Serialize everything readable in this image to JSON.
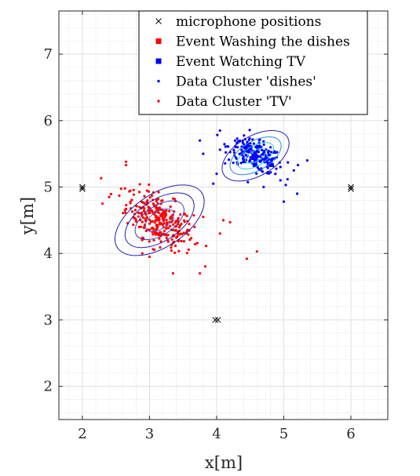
{
  "chart_data": {
    "type": "scatter",
    "xlabel": "x[m]",
    "ylabel": "y[m]",
    "xlim": [
      1.65,
      6.55
    ],
    "ylim": [
      1.5,
      7.65
    ],
    "xticks": [
      "2",
      "3",
      "4",
      "5",
      "6"
    ],
    "yticks": [
      "2",
      "3",
      "4",
      "5",
      "6",
      "7"
    ],
    "grid": true,
    "minor_grid": true,
    "legend_position": "top-right",
    "legend": [
      {
        "label": "microphone positions",
        "marker": "x",
        "color": "#000000"
      },
      {
        "label": "Event Washing the dishes",
        "marker": "square",
        "color": "#ff0000"
      },
      {
        "label": "Event Watching TV",
        "marker": "square",
        "color": "#0000ff"
      },
      {
        "label": "Data Cluster 'dishes'",
        "marker": "dot",
        "color": "#0000ff"
      },
      {
        "label": "Data Cluster 'TV'",
        "marker": "dot",
        "color": "#ff0000"
      }
    ],
    "microphones": [
      {
        "x": 2.0,
        "y": 5.0
      },
      {
        "x": 2.0,
        "y": 4.97
      },
      {
        "x": 6.0,
        "y": 5.0
      },
      {
        "x": 6.0,
        "y": 4.97
      },
      {
        "x": 3.98,
        "y": 3.0
      },
      {
        "x": 4.02,
        "y": 3.0
      }
    ],
    "clusters": [
      {
        "name": "red",
        "color": "#ff0000",
        "center": [
          3.15,
          4.5
        ],
        "spread": [
          0.25,
          0.22
        ],
        "corr": -0.55,
        "count": 300,
        "outliers": [
          [
            2.65,
            5.38
          ],
          [
            2.65,
            5.33
          ],
          [
            2.3,
            4.75
          ],
          [
            2.4,
            4.85
          ],
          [
            3.35,
            3.7
          ],
          [
            3.75,
            3.7
          ],
          [
            4.45,
            3.92
          ],
          [
            4.6,
            4.03
          ],
          [
            4.1,
            4.5
          ],
          [
            4.2,
            4.47
          ],
          [
            4.05,
            4.3
          ],
          [
            3.8,
            4.55
          ],
          [
            3.0,
            3.95
          ],
          [
            2.55,
            4.87
          ]
        ],
        "ellipses": [
          {
            "cx": 3.15,
            "cy": 4.5,
            "rx": 0.75,
            "ry": 0.4,
            "angle": -33,
            "color": "#1f1fb4"
          },
          {
            "cx": 3.15,
            "cy": 4.5,
            "rx": 0.58,
            "ry": 0.31,
            "angle": -33,
            "color": "#1f1fb4"
          },
          {
            "cx": 3.15,
            "cy": 4.5,
            "rx": 0.41,
            "ry": 0.22,
            "angle": -33,
            "color": "#3c3cc8"
          },
          {
            "cx": 3.15,
            "cy": 4.5,
            "rx": 0.24,
            "ry": 0.13,
            "angle": -33,
            "color": "#5a5ae0"
          }
        ]
      },
      {
        "name": "blue",
        "color": "#0000ff",
        "center": [
          4.58,
          5.47
        ],
        "spread": [
          0.2,
          0.13
        ],
        "corr": -0.55,
        "count": 240,
        "outliers": [
          [
            4.05,
            5.85
          ],
          [
            3.75,
            5.7
          ],
          [
            3.8,
            5.5
          ],
          [
            5.35,
            5.4
          ],
          [
            5.2,
            4.9
          ],
          [
            5.0,
            4.78
          ],
          [
            4.0,
            5.2
          ],
          [
            3.95,
            5.05
          ],
          [
            4.7,
            5.0
          ],
          [
            4.95,
            5.1
          ],
          [
            5.15,
            5.25
          ]
        ],
        "ellipses": [
          {
            "cx": 4.58,
            "cy": 5.47,
            "rx": 0.55,
            "ry": 0.3,
            "angle": -30,
            "color": "#1f1fb4"
          },
          {
            "cx": 4.58,
            "cy": 5.47,
            "rx": 0.42,
            "ry": 0.22,
            "angle": -30,
            "color": "#2a8ad8"
          },
          {
            "cx": 4.58,
            "cy": 5.47,
            "rx": 0.3,
            "ry": 0.15,
            "angle": -30,
            "color": "#20c8e8"
          },
          {
            "cx": 4.58,
            "cy": 5.47,
            "rx": 0.17,
            "ry": 0.08,
            "angle": -30,
            "color": "#40f0f0"
          }
        ]
      }
    ]
  }
}
